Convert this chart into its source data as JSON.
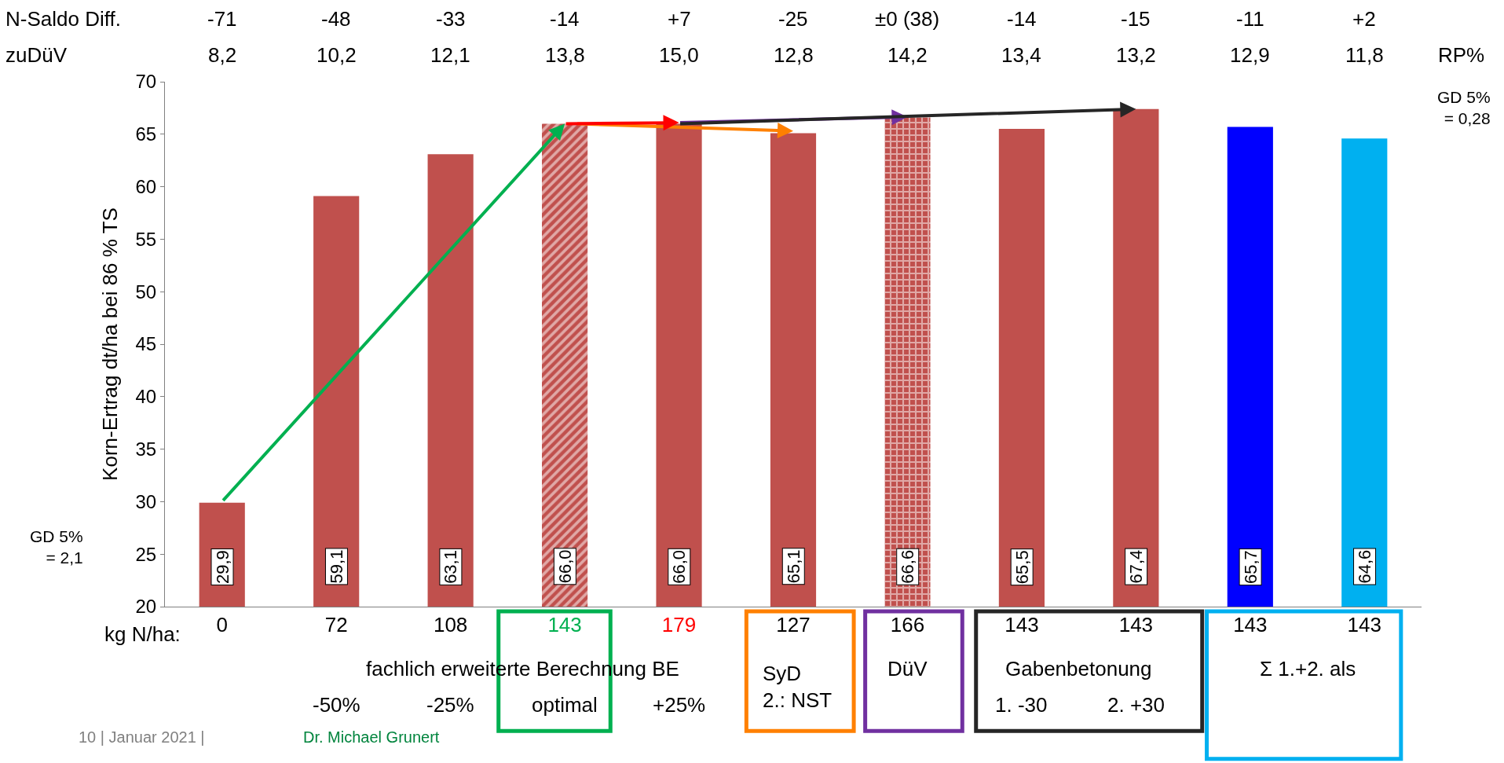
{
  "chart_data": {
    "type": "bar",
    "ylabel": "Korn-Ertrag dt/ha bei 86 % TS",
    "categories": [
      "0",
      "72",
      "108",
      "143",
      "179",
      "127",
      "166",
      "143",
      "143",
      "143",
      "143"
    ],
    "values": [
      29.9,
      59.1,
      63.1,
      66.0,
      66.0,
      65.1,
      66.6,
      65.5,
      67.4,
      65.7,
      64.6
    ],
    "colors": [
      "#c0504d",
      "#c0504d",
      "#c0504d",
      "#c0504d",
      "#c0504d",
      "#c0504d",
      "#c0504d",
      "#c0504d",
      "#c0504d",
      "#0000ff",
      "#00b0f0"
    ],
    "value_labels": [
      "29,9",
      "59,1",
      "63,1",
      "66,0",
      "66,0",
      "65,1",
      "66,6",
      "65,5",
      "67,4",
      "65,7",
      "64,6"
    ],
    "ylim": [
      20,
      70
    ],
    "yticks": [
      20,
      25,
      30,
      35,
      40,
      45,
      50,
      55,
      60,
      65,
      70
    ],
    "annotations": [
      "N-Saldo Diff.",
      "zuDüV",
      "RP%",
      "-71",
      "-48",
      "-33",
      "-14",
      "+7",
      "-25",
      "±0 (38)",
      "-14",
      "-15",
      "-11",
      "+2",
      "8,2",
      "10,2",
      "12,1",
      "13,8",
      "15,0",
      "12,8",
      "14,2",
      "13,4",
      "13,2",
      "12,9",
      "11,8",
      "GD 5%\n= 0,28",
      "GD 5%\n= 2,1",
      "kg N/ha:",
      "fachlich erweiterte Berechnung BE",
      "-50%",
      "-25%",
      "optimal",
      "+25%",
      "SyD\n2.: NST",
      "DüV",
      "Gabenbetonung",
      "1. -30",
      "2. +30",
      "Σ 1.+2. als",
      "10 | Januar 2021 |",
      "Dr. Michael Grunert"
    ]
  }
}
